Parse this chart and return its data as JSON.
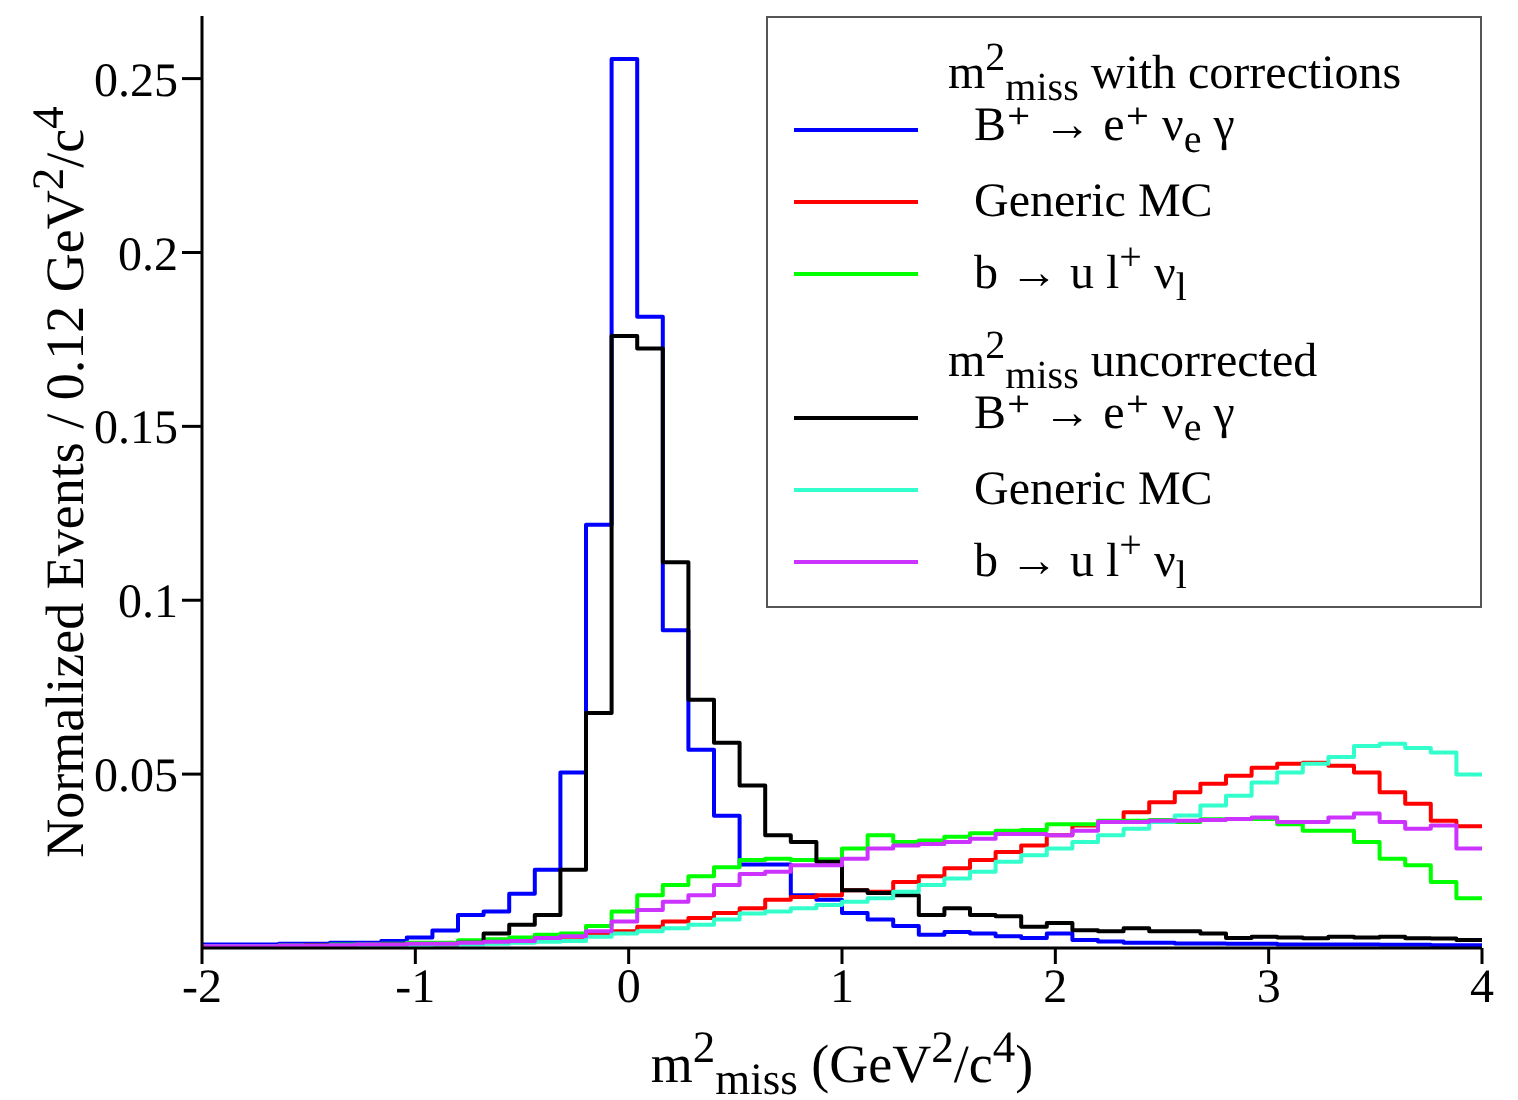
{
  "chart_data": {
    "type": "histogram",
    "xlabel": "m$^{2}$$_{miss}$ (GeV$^{2}$/c$^{4}$)",
    "ylabel": "Normalized Events / 0.12 GeV$^{2}$/c$^{4}$",
    "annotations": [
      "m$^{2}$$_{miss}$ with corrections",
      "m$^{2}$$_{miss}$ uncorrected"
    ],
    "bins": [
      -2,
      -1.88,
      -1.76,
      -1.64,
      -1.52,
      -1.4,
      -1.28,
      -1.16,
      -1.04,
      -0.92,
      -0.8,
      -0.68,
      -0.56,
      -0.44,
      -0.32,
      -0.2,
      -0.08,
      0.04,
      0.16,
      0.28,
      0.4,
      0.52,
      0.64,
      0.76,
      0.88,
      1,
      1.12,
      1.24,
      1.36,
      1.48,
      1.6,
      1.72,
      1.84,
      1.96,
      2.08,
      2.2,
      2.32,
      2.44,
      2.56,
      2.68,
      2.8,
      2.92,
      3.04,
      3.16,
      3.28,
      3.4,
      3.52,
      3.64,
      3.76,
      3.88,
      4
    ],
    "series": [
      {
        "name": "B⁺ → e⁺ ν$_{e}$ γ",
        "color": "#0000ff",
        "values": [
          0.001,
          0.001,
          0.001,
          0.0012,
          0.0012,
          0.0015,
          0.0015,
          0.002,
          0.003,
          0.005,
          0.0095,
          0.0105,
          0.0156,
          0.0225,
          0.0505,
          0.1217,
          0.2556,
          0.1815,
          0.0914,
          0.057,
          0.038,
          0.024,
          0.024,
          0.0152,
          0.0139,
          0.0101,
          0.0082,
          0.0063,
          0.0038,
          0.0046,
          0.0042,
          0.0034,
          0.0029,
          0.0042,
          0.0023,
          0.0019,
          0.0015,
          0.0015,
          0.0013,
          0.0013,
          0.0012,
          0.0012,
          0.001,
          0.001,
          0.001,
          0.001,
          0.0009,
          0.0009,
          0.0008,
          0.0008
        ]
      },
      {
        "name": "Generic MC",
        "color": "#ff0000",
        "values": [
          0.0005,
          0.0005,
          0.0005,
          0.0005,
          0.0007,
          0.0007,
          0.0008,
          0.001,
          0.001,
          0.0012,
          0.0012,
          0.0015,
          0.0018,
          0.002,
          0.0032,
          0.0042,
          0.0048,
          0.0061,
          0.0076,
          0.0086,
          0.0101,
          0.0114,
          0.0139,
          0.0147,
          0.0152,
          0.0166,
          0.0162,
          0.019,
          0.0206,
          0.0229,
          0.0253,
          0.0276,
          0.0295,
          0.0324,
          0.0352,
          0.0362,
          0.039,
          0.0419,
          0.0448,
          0.0472,
          0.0495,
          0.0518,
          0.053,
          0.0533,
          0.0524,
          0.0505,
          0.0448,
          0.0415,
          0.0366,
          0.035
        ]
      },
      {
        "name": "b → u l$^{+}$ ν$_{l}$",
        "color": "#00ff00",
        "values": [
          0.0005,
          0.0005,
          0.0005,
          0.0007,
          0.0007,
          0.001,
          0.001,
          0.0012,
          0.0015,
          0.0015,
          0.0022,
          0.0025,
          0.003,
          0.0038,
          0.0042,
          0.0063,
          0.0105,
          0.0152,
          0.0181,
          0.0206,
          0.0232,
          0.0253,
          0.0257,
          0.0253,
          0.0255,
          0.0286,
          0.0324,
          0.0305,
          0.0309,
          0.032,
          0.033,
          0.0337,
          0.0339,
          0.0356,
          0.0356,
          0.0366,
          0.0366,
          0.0368,
          0.0362,
          0.037,
          0.0371,
          0.0371,
          0.0356,
          0.0337,
          0.0337,
          0.0305,
          0.0257,
          0.0238,
          0.019,
          0.0143
        ]
      },
      {
        "name": "B⁺ → e⁺ ν$_{e}$ γ",
        "color": "#000000",
        "values": [
          0.0005,
          0.0005,
          0.0005,
          0.0005,
          0.0007,
          0.0007,
          0.0008,
          0.001,
          0.001,
          0.001,
          0.0015,
          0.0042,
          0.0067,
          0.0095,
          0.0225,
          0.0676,
          0.176,
          0.1724,
          0.1109,
          0.0714,
          0.059,
          0.0467,
          0.0324,
          0.0305,
          0.0248,
          0.0166,
          0.0158,
          0.0152,
          0.0095,
          0.0114,
          0.0095,
          0.0091,
          0.0061,
          0.0072,
          0.0051,
          0.0048,
          0.0057,
          0.0048,
          0.0048,
          0.0042,
          0.0029,
          0.0032,
          0.003,
          0.0028,
          0.0032,
          0.003,
          0.0032,
          0.0028,
          0.0027,
          0.0023
        ]
      },
      {
        "name": "Generic MC",
        "color": "#33ffcc",
        "values": [
          0.0005,
          0.0005,
          0.0005,
          0.0005,
          0.0005,
          0.0007,
          0.0007,
          0.0008,
          0.0008,
          0.001,
          0.001,
          0.0012,
          0.0015,
          0.0018,
          0.002,
          0.0032,
          0.0042,
          0.0048,
          0.0057,
          0.0067,
          0.0082,
          0.0099,
          0.0105,
          0.0114,
          0.0124,
          0.0133,
          0.0143,
          0.0162,
          0.0181,
          0.02,
          0.0219,
          0.0248,
          0.0267,
          0.0286,
          0.0305,
          0.0324,
          0.0343,
          0.0362,
          0.0381,
          0.041,
          0.0438,
          0.0476,
          0.0505,
          0.053,
          0.0549,
          0.0581,
          0.0587,
          0.0575,
          0.0562,
          0.0499
        ]
      },
      {
        "name": "b → u l$^{+}$ ν$_{l}$",
        "color": "#cc33ff",
        "values": [
          0.0005,
          0.0005,
          0.0005,
          0.0007,
          0.0007,
          0.0008,
          0.001,
          0.001,
          0.0012,
          0.0012,
          0.0015,
          0.0018,
          0.002,
          0.0029,
          0.0034,
          0.0048,
          0.0076,
          0.0109,
          0.0133,
          0.0152,
          0.0181,
          0.0213,
          0.0219,
          0.0238,
          0.0238,
          0.0257,
          0.0286,
          0.0295,
          0.0299,
          0.0305,
          0.0314,
          0.0328,
          0.0328,
          0.0324,
          0.0337,
          0.0362,
          0.0362,
          0.0366,
          0.0366,
          0.0368,
          0.0371,
          0.0375,
          0.0362,
          0.0362,
          0.0375,
          0.0387,
          0.0362,
          0.0343,
          0.0352,
          0.0286
        ]
      }
    ],
    "xlim": [
      -2,
      4
    ],
    "xticks": [
      -2,
      -1,
      0,
      1,
      2,
      3,
      4
    ],
    "ylim": [
      0,
      0.268
    ],
    "yticks": [
      0.05,
      0.1,
      0.15,
      0.2,
      0.25
    ],
    "grid": false,
    "legend": "top right"
  }
}
